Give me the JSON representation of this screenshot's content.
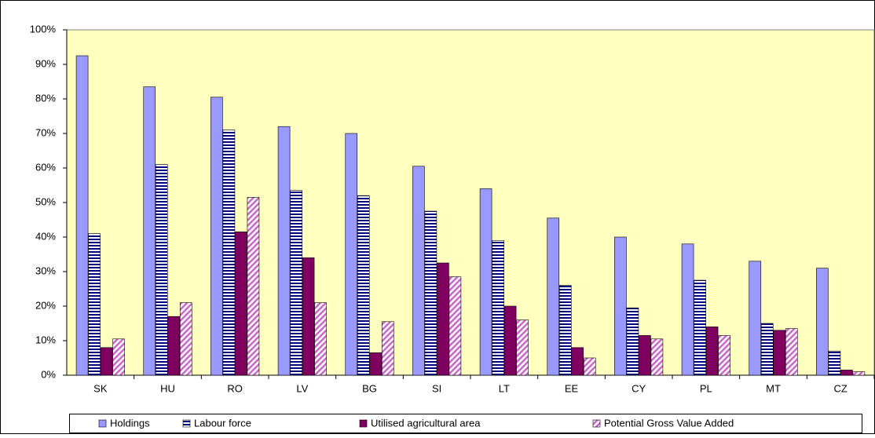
{
  "chart_data": {
    "type": "bar",
    "categories": [
      "SK",
      "HU",
      "RO",
      "LV",
      "BG",
      "SI",
      "LT",
      "EE",
      "CY",
      "PL",
      "MT",
      "CZ"
    ],
    "series": [
      {
        "name": "Holdings",
        "color": "#9999ff",
        "pattern": "solid",
        "values": [
          92.5,
          83.5,
          80.5,
          72,
          70,
          60.5,
          54,
          45.5,
          40,
          38,
          33,
          31
        ]
      },
      {
        "name": "Labour force",
        "color": "#000080",
        "pattern": "horizontal",
        "values": [
          41,
          61,
          71,
          53.5,
          52,
          47.5,
          39,
          26,
          19.5,
          27.5,
          15,
          7
        ]
      },
      {
        "name": "Utilised agricultural area",
        "color": "#800060",
        "pattern": "solid",
        "values": [
          8,
          17,
          41.5,
          34,
          6.5,
          32.5,
          20,
          8,
          11.5,
          14,
          13,
          1.5
        ]
      },
      {
        "name": "Potential Gross Value Added",
        "color": "#cc66cc",
        "pattern": "diagonal",
        "values": [
          10.5,
          21,
          51.5,
          21,
          15.5,
          28.5,
          16,
          5,
          10.5,
          11.5,
          13.5,
          1
        ]
      }
    ],
    "ylim": [
      0,
      100
    ],
    "yticks": [
      {
        "value": 0,
        "label": "0%"
      },
      {
        "value": 10,
        "label": "10%"
      },
      {
        "value": 20,
        "label": "20%"
      },
      {
        "value": 30,
        "label": "30%"
      },
      {
        "value": 40,
        "label": "40%"
      },
      {
        "value": 50,
        "label": "50%"
      },
      {
        "value": 60,
        "label": "60%"
      },
      {
        "value": 70,
        "label": "70%"
      },
      {
        "value": 80,
        "label": "80%"
      },
      {
        "value": 90,
        "label": "90%"
      },
      {
        "value": 100,
        "label": "100%"
      }
    ],
    "legend": "bottom",
    "plot_background": "#ffffc0"
  }
}
